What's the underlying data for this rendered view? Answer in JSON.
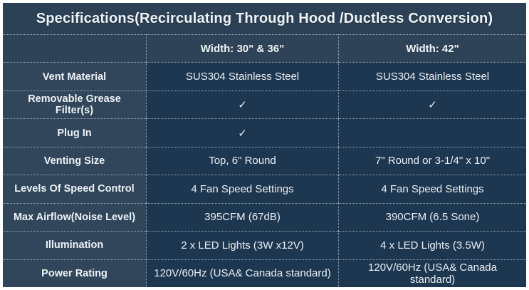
{
  "title": "Specifications(Recirculating Through Hood /Ductless Conversion)",
  "colors": {
    "outer_border": "#ffffff",
    "title_bg": "#2c4156",
    "header_bg": "#2e4357",
    "label_bg": "#31465b",
    "value_bg": "#1e3750",
    "text": "#eef3f6",
    "divider_dotted": "#becedc"
  },
  "icons": {
    "checkmark": "✓"
  },
  "table": {
    "header": [
      "",
      "Width: 30\" & 36\"",
      "Width: 42\""
    ],
    "rows": [
      {
        "label": "Vent Material",
        "values": [
          "SUS304 Stainless Steel",
          "SUS304 Stainless Steel"
        ]
      },
      {
        "label": "Removable Grease Filter(s)",
        "values": [
          "✓",
          "✓"
        ]
      },
      {
        "label": "Plug In",
        "values": [
          "✓",
          ""
        ]
      },
      {
        "label": "Venting Size",
        "values": [
          "Top, 6\" Round",
          "7\" Round or 3-1/4\" x 10\""
        ]
      },
      {
        "label": "Levels Of Speed Control",
        "values": [
          "4 Fan Speed Settings",
          "4 Fan Speed Settings"
        ]
      },
      {
        "label": "Max Airflow(Noise Level)",
        "values": [
          "395CFM (67dB)",
          "390CFM (6.5 Sone)"
        ]
      },
      {
        "label": "Illumination",
        "values": [
          "2 x  LED Lights (3W x12V)",
          "4 x LED Lights (3.5W)"
        ]
      },
      {
        "label": "Power Rating",
        "values": [
          "120V/60Hz (USA& Canada standard)",
          "120V/60Hz (USA& Canada standard)"
        ]
      }
    ]
  }
}
